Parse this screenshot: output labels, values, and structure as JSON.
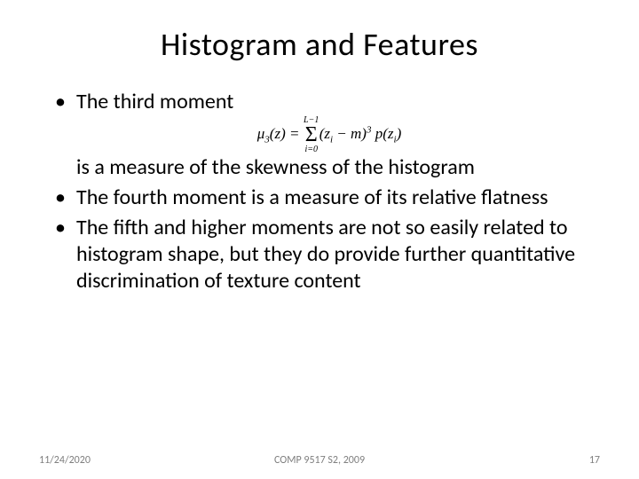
{
  "slide": {
    "title": "Histogram and Features",
    "bullets": {
      "b1": "The third moment",
      "b1_cont": "is a measure of the skewness of the histogram",
      "b2": "The fourth moment is a measure of its relative flatness",
      "b3": "The fifth and higher moments are not so easily related to histogram shape, but they do provide further quantitative discrimination of texture content"
    },
    "formula": {
      "lhs_mu": "μ",
      "lhs_sub": "3",
      "lhs_arg": "(z) = ",
      "sum_top": "L−1",
      "sum_bot": "i=0",
      "sigma": "Σ",
      "term_open": "(",
      "term_zi": "z",
      "term_zi_sub": "i",
      "term_minus": " − m)",
      "term_exp": "3",
      "term_p": " p(z",
      "term_p_sub": "i",
      "term_close": ")"
    },
    "footer": {
      "date": "11/24/2020",
      "course": "COMP 9517 S2, 2009",
      "page": "17"
    }
  },
  "style": {
    "title_fontsize": 36,
    "body_fontsize": 24,
    "footer_fontsize": 12,
    "footer_color": "#7f7f7f",
    "text_color": "#000000",
    "background_color": "#ffffff"
  }
}
